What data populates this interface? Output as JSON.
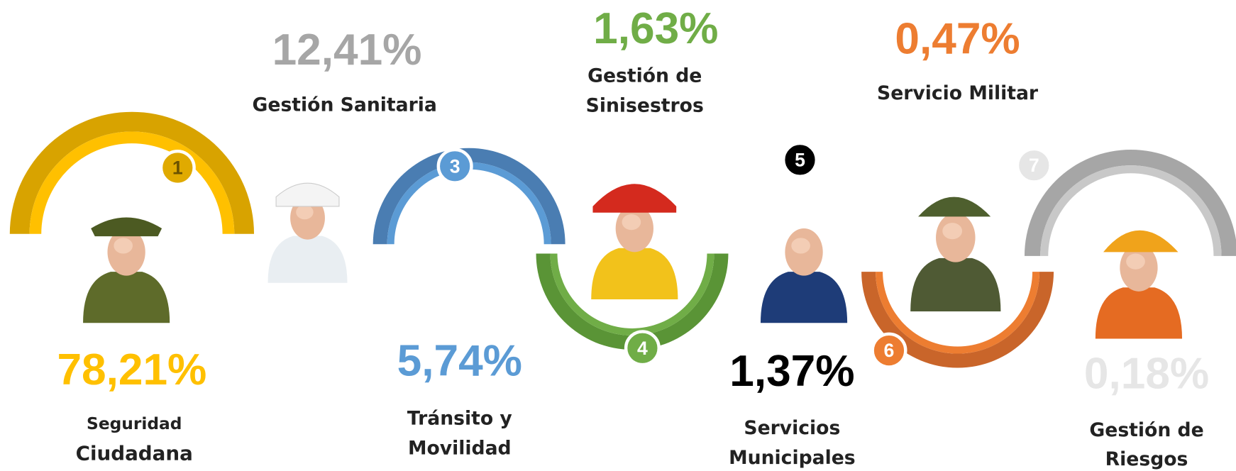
{
  "items": [
    {
      "number": "1",
      "percent": "78,21%",
      "label": [
        "Seguridad",
        "Ciudadana"
      ]
    },
    {
      "percent": "12,41%",
      "label": [
        "Gestión Sanitaria"
      ]
    },
    {
      "number": "3",
      "percent": "5,74%",
      "label": [
        "Tránsito y",
        "Movilidad"
      ]
    },
    {
      "number": "4",
      "percent": "1,63%",
      "label": [
        "Gestión de",
        "Sinisestros"
      ]
    },
    {
      "number": "5",
      "percent": "1,37%",
      "label": [
        "Servicios",
        "Municipales"
      ]
    },
    {
      "number": "6",
      "percent": "0,47%",
      "label": [
        "Servicio Militar"
      ]
    },
    {
      "number": "7",
      "percent": "0,18%",
      "label": [
        "Gestión de",
        "Riesgos"
      ]
    }
  ]
}
